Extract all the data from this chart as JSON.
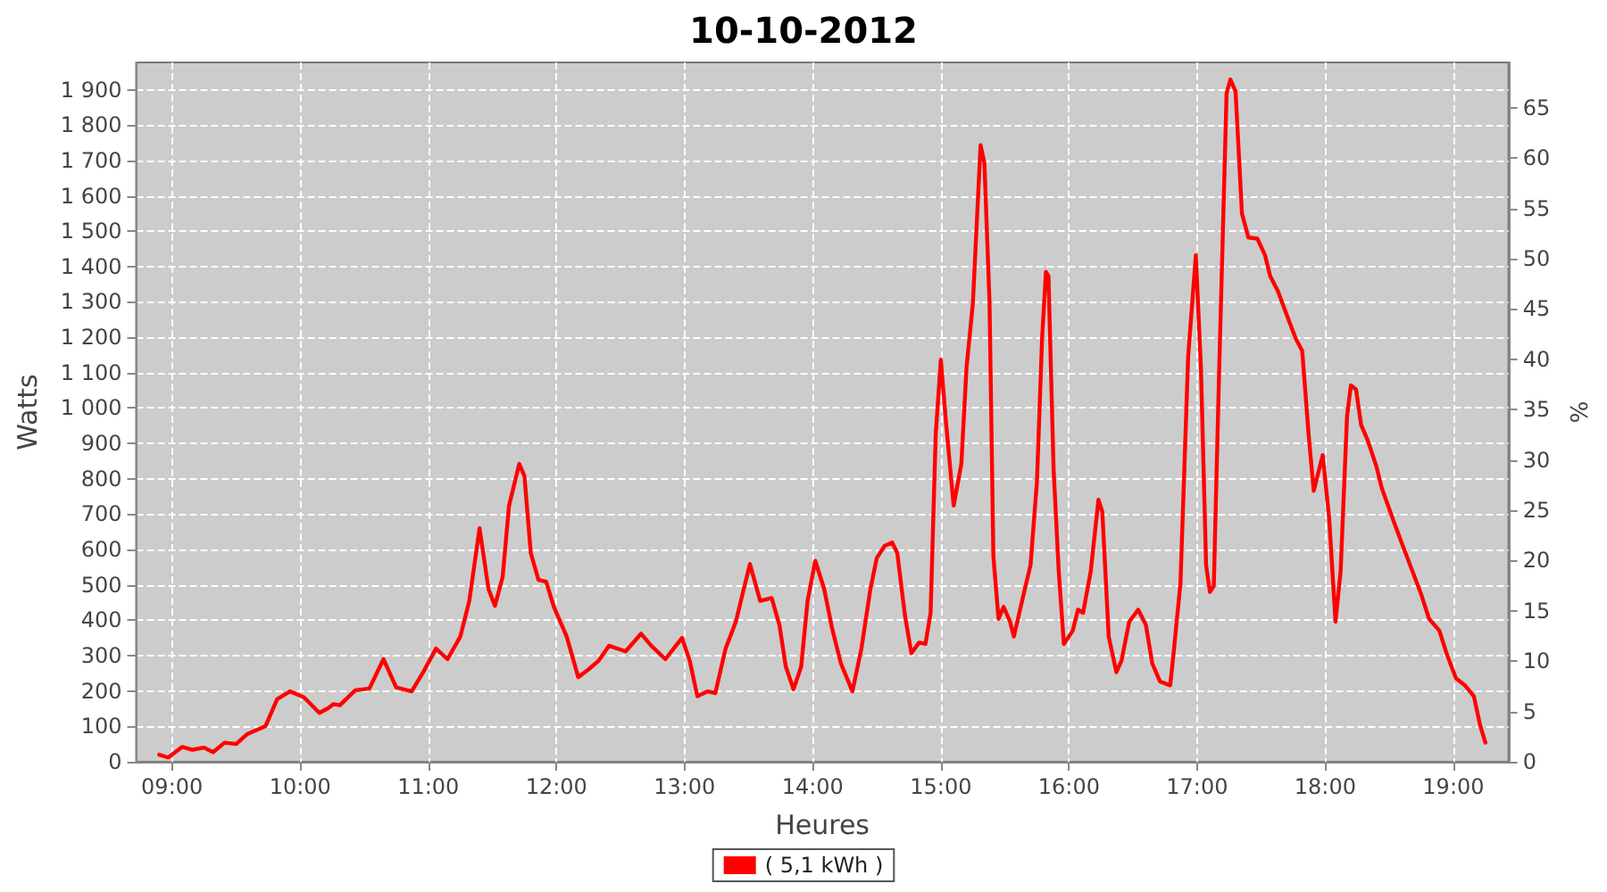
{
  "chart_data": {
    "type": "line",
    "title": "10-10-2012",
    "xlabel": "Heures",
    "ylabel": "Watts",
    "y2label": "%",
    "xlim": [
      8.72,
      19.43
    ],
    "xticks": [
      {
        "value": 9,
        "label": "09:00"
      },
      {
        "value": 10,
        "label": "10:00"
      },
      {
        "value": 11,
        "label": "11:00"
      },
      {
        "value": 12,
        "label": "12:00"
      },
      {
        "value": 13,
        "label": "13:00"
      },
      {
        "value": 14,
        "label": "14:00"
      },
      {
        "value": 15,
        "label": "15:00"
      },
      {
        "value": 16,
        "label": "16:00"
      },
      {
        "value": 17,
        "label": "17:00"
      },
      {
        "value": 18,
        "label": "18:00"
      },
      {
        "value": 19,
        "label": "19:00"
      }
    ],
    "ylim": [
      0,
      1977
    ],
    "yticks": [
      0,
      100,
      200,
      300,
      400,
      500,
      600,
      700,
      800,
      900,
      {
        "value": 1000,
        "label": "1 000"
      },
      {
        "value": 1100,
        "label": "1 100"
      },
      {
        "value": 1200,
        "label": "1 200"
      },
      {
        "value": 1300,
        "label": "1 300"
      },
      {
        "value": 1400,
        "label": "1 400"
      },
      {
        "value": 1500,
        "label": "1 500"
      },
      {
        "value": 1600,
        "label": "1 600"
      },
      {
        "value": 1700,
        "label": "1 700"
      },
      {
        "value": 1800,
        "label": "1 800"
      },
      {
        "value": 1900,
        "label": "1 900"
      }
    ],
    "y2lim": [
      0,
      69.5
    ],
    "y2ticks": [
      0,
      5,
      10,
      15,
      20,
      25,
      30,
      35,
      40,
      45,
      50,
      55,
      60,
      65
    ],
    "grid": true,
    "legend": "bottom",
    "marker": "none",
    "line_style": "solid",
    "series": [
      {
        "name": "( 5,1 kWh )",
        "color": "#ff0000",
        "x": [
          8.9,
          8.97,
          9.08,
          9.16,
          9.25,
          9.32,
          9.41,
          9.5,
          9.59,
          9.73,
          9.82,
          9.92,
          10.03,
          10.15,
          10.22,
          10.26,
          10.31,
          10.43,
          10.54,
          10.65,
          10.75,
          10.87,
          10.96,
          11.06,
          11.15,
          11.25,
          11.32,
          11.4,
          11.47,
          11.52,
          11.58,
          11.63,
          11.71,
          11.75,
          11.8,
          11.86,
          11.92,
          11.98,
          12.08,
          12.17,
          12.25,
          12.33,
          12.41,
          12.54,
          12.66,
          12.74,
          12.85,
          12.98,
          13.04,
          13.1,
          13.18,
          13.24,
          13.32,
          13.4,
          13.51,
          13.59,
          13.68,
          13.74,
          13.79,
          13.85,
          13.91,
          13.96,
          14.02,
          14.09,
          14.15,
          14.22,
          14.31,
          14.38,
          14.45,
          14.5,
          14.56,
          14.62,
          14.66,
          14.72,
          14.77,
          14.83,
          14.88,
          14.92,
          14.96,
          15.0,
          15.04,
          15.1,
          15.16,
          15.2,
          15.25,
          15.31,
          15.34,
          15.38,
          15.41,
          15.45,
          15.49,
          15.54,
          15.57,
          15.65,
          15.7,
          15.75,
          15.79,
          15.82,
          15.84,
          15.88,
          15.92,
          15.96,
          16.03,
          16.07,
          16.11,
          16.17,
          16.23,
          16.26,
          16.31,
          16.37,
          16.41,
          16.47,
          16.54,
          16.6,
          16.65,
          16.71,
          16.79,
          16.82,
          16.87,
          16.93,
          16.99,
          17.03,
          17.07,
          17.1,
          17.13,
          17.17,
          17.23,
          17.26,
          17.3,
          17.35,
          17.4,
          17.47,
          17.53,
          17.57,
          17.63,
          17.7,
          17.77,
          17.82,
          17.87,
          17.91,
          17.98,
          18.03,
          18.08,
          18.12,
          18.17,
          18.2,
          18.24,
          18.28,
          18.33,
          18.4,
          18.44,
          18.54,
          18.61,
          18.68,
          18.75,
          18.81,
          18.89,
          18.95,
          19.02,
          19.09,
          19.16,
          19.21,
          19.25
        ],
        "values": [
          20,
          12,
          42,
          34,
          40,
          27,
          54,
          50,
          79,
          101,
          177,
          199,
          182,
          138,
          152,
          163,
          160,
          202,
          207,
          290,
          210,
          199,
          253,
          320,
          290,
          354,
          455,
          660,
          488,
          441,
          522,
          724,
          842,
          808,
          590,
          514,
          509,
          438,
          354,
          239,
          261,
          286,
          328,
          312,
          362,
          328,
          290,
          350,
          286,
          185,
          199,
          194,
          320,
          396,
          559,
          455,
          463,
          387,
          269,
          205,
          269,
          455,
          568,
          488,
          379,
          278,
          199,
          320,
          488,
          576,
          610,
          620,
          590,
          413,
          307,
          337,
          333,
          421,
          926,
          1137,
          960,
          724,
          842,
          1112,
          1297,
          1743,
          1693,
          1297,
          581,
          404,
          438,
          396,
          354,
          480,
          556,
          792,
          1196,
          1385,
          1373,
          825,
          539,
          333,
          371,
          430,
          421,
          539,
          741,
          707,
          354,
          253,
          286,
          396,
          430,
          387,
          278,
          227,
          216,
          320,
          505,
          1145,
          1432,
          1112,
          556,
          480,
          497,
          1078,
          1890,
          1929,
          1895,
          1550,
          1482,
          1479,
          1432,
          1373,
          1331,
          1263,
          1196,
          1162,
          926,
          766,
          867,
          691,
          396,
          539,
          977,
          1064,
          1053,
          952,
          910,
          834,
          775,
          674,
          606,
          539,
          472,
          404,
          371,
          303,
          236,
          216,
          185,
          101,
          54
        ]
      }
    ]
  }
}
